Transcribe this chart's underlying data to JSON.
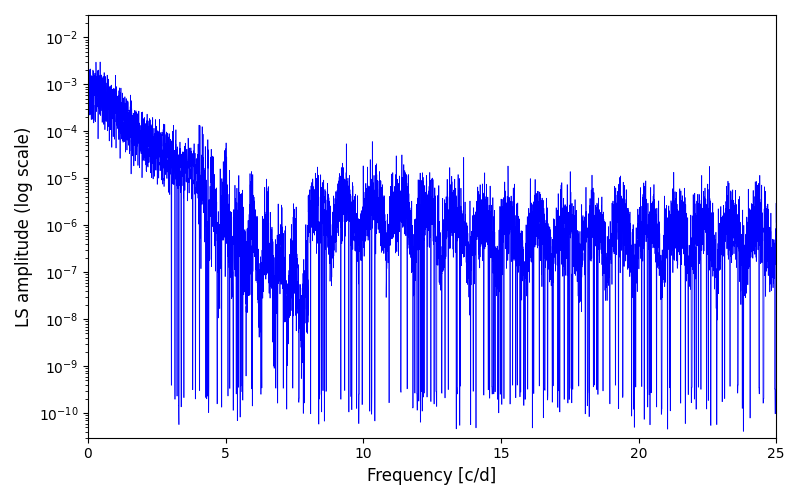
{
  "title": "",
  "xlabel": "Frequency [c/d]",
  "ylabel": "LS amplitude (log scale)",
  "xlim": [
    0,
    25
  ],
  "ylim": [
    3e-11,
    0.03
  ],
  "line_color": "#0000ff",
  "line_width": 0.5,
  "background_color": "#ffffff",
  "figsize": [
    8.0,
    5.0
  ],
  "dpi": 100,
  "freq_max": 25.0,
  "n_points": 8000,
  "seed": 12345
}
